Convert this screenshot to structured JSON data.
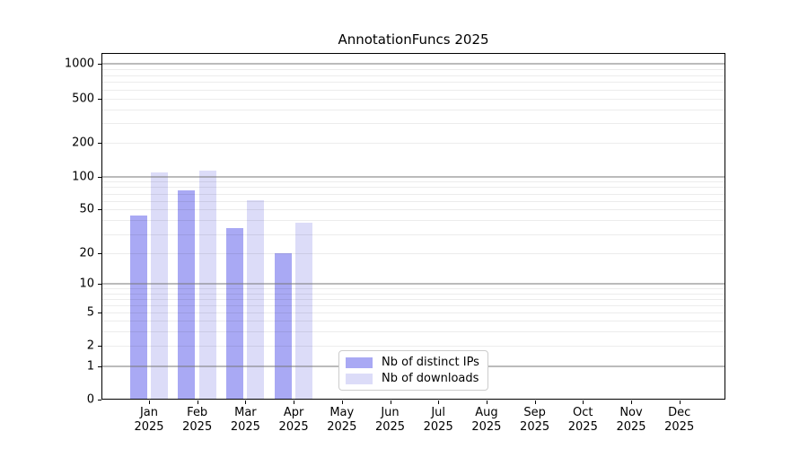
{
  "figure": {
    "background": "#ffffff"
  },
  "chart_data": {
    "type": "bar",
    "title": "AnnotationFuncs 2025",
    "categories": [
      "Jan",
      "Feb",
      "Mar",
      "Apr",
      "May",
      "Jun",
      "Jul",
      "Aug",
      "Sep",
      "Oct",
      "Nov",
      "Dec"
    ],
    "category_year": "2025",
    "series": [
      {
        "name": "Nb of distinct IPs",
        "color": "#a9a9f4",
        "values": [
          44,
          75,
          34,
          20,
          0,
          0,
          0,
          0,
          0,
          0,
          0,
          0
        ]
      },
      {
        "name": "Nb of downloads",
        "color": "#dcdcf8",
        "values": [
          110,
          113,
          61,
          38,
          0,
          0,
          0,
          0,
          0,
          0,
          0,
          0
        ]
      }
    ],
    "xlabel": "",
    "ylabel": "",
    "y_scale": "symlog",
    "y_ticks": [
      0,
      1,
      2,
      5,
      10,
      20,
      50,
      100,
      200,
      500,
      1000
    ],
    "ylim": [
      0,
      1400
    ],
    "grid": "horizontal major at powers of 10, minor at 2-9 per decade",
    "legend_position": "inside bottom-left-of-center",
    "axis_color": "#000000",
    "major_grid_color": "#bcbcbc",
    "minor_grid_color": "#ededed"
  }
}
